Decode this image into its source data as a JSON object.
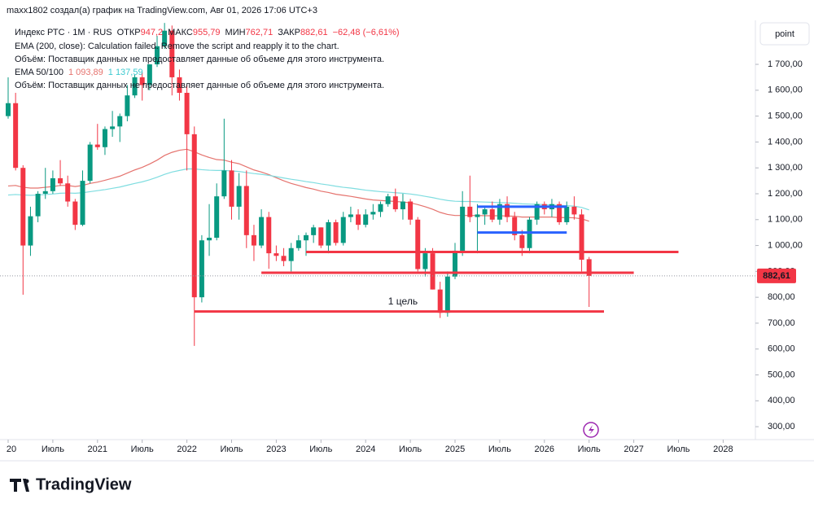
{
  "header": {
    "credit": "maxx1802 создал(а) график на TradingView.com, Авг 01, 2026 17:06 UTC+3",
    "button": "point",
    "logo": "TradingView"
  },
  "chart_data": {
    "type": "candlestick",
    "legend": {
      "symbol": "Индекс РТС · 1M · RUS",
      "open_label": "ОТКР",
      "open": "947,2",
      "high_label": "МАКС",
      "high": "955,79",
      "low_label": "МИН",
      "low": "762,71",
      "close_label": "ЗАКР",
      "close": "882,61",
      "change": "−62,48 (−6,61%)",
      "ema200": "EMA (200, close): Calculation failed. Remove the script and reapply it to the chart.",
      "volume1": "Объём: Поставщик данных не предоставляет данные об объеме для этого инструмента.",
      "ema_label": "EMA 50/100",
      "volume2": "Объём: Поставщик данных не предоставляет данные об объеме для этого инструмента."
    },
    "up_color": "#089981",
    "down_color": "#f23645",
    "x": [
      "2020-01",
      "2020-02",
      "2020-03",
      "2020-04",
      "2020-05",
      "2020-06",
      "2020-07",
      "2020-08",
      "2020-09",
      "2020-10",
      "2020-11",
      "2020-12",
      "2021-01",
      "2021-02",
      "2021-03",
      "2021-04",
      "2021-05",
      "2021-06",
      "2021-07",
      "2021-08",
      "2021-09",
      "2021-10",
      "2021-11",
      "2021-12",
      "2022-01",
      "2022-02",
      "2022-03",
      "2022-04",
      "2022-05",
      "2022-06",
      "2022-07",
      "2022-08",
      "2022-09",
      "2022-10",
      "2022-11",
      "2022-12",
      "2023-01",
      "2023-02",
      "2023-03",
      "2023-04",
      "2023-05",
      "2023-06",
      "2023-07",
      "2023-08",
      "2023-09",
      "2023-10",
      "2023-11",
      "2023-12",
      "2024-01",
      "2024-02",
      "2024-03",
      "2024-04",
      "2024-05",
      "2024-06",
      "2024-07",
      "2024-08",
      "2024-09",
      "2024-10",
      "2024-11",
      "2024-12",
      "2025-01",
      "2025-02",
      "2025-03",
      "2025-04",
      "2025-05",
      "2025-06",
      "2025-07",
      "2025-08",
      "2025-09",
      "2025-10",
      "2025-11",
      "2025-12",
      "2026-01",
      "2026-02",
      "2026-03",
      "2026-04",
      "2026-05",
      "2026-06",
      "2026-07"
    ],
    "open": [
      1500,
      1550,
      1300,
      1000,
      1113,
      1200,
      1210,
      1260,
      1240,
      1170,
      1080,
      1250,
      1390,
      1380,
      1450,
      1460,
      1500,
      1580,
      1650,
      1620,
      1700,
      1770,
      1830,
      1650,
      1590,
      1430,
      800,
      1020,
      1030,
      1190,
      1290,
      1150,
      1230,
      1040,
      1000,
      1110,
      970,
      960,
      940,
      990,
      1020,
      1040,
      1070,
      1000,
      1090,
      1010,
      1110,
      1120,
      1080,
      1120,
      1130,
      1160,
      1190,
      1140,
      1170,
      1100,
      909,
      970,
      830,
      740,
      880,
      980,
      1150,
      1110,
      1120,
      1140,
      1100,
      1160,
      1110,
      1040,
      990,
      1100,
      1160,
      1140,
      1160,
      1090,
      1150,
      1120,
      947.2
    ],
    "high": [
      1650,
      1590,
      1310,
      1150,
      1210,
      1300,
      1290,
      1330,
      1270,
      1180,
      1290,
      1400,
      1470,
      1460,
      1520,
      1510,
      1620,
      1660,
      1670,
      1700,
      1810,
      1860,
      1850,
      1680,
      1620,
      1460,
      1040,
      1160,
      1240,
      1490,
      1330,
      1280,
      1290,
      1080,
      1140,
      1130,
      1000,
      990,
      1010,
      1040,
      1050,
      1080,
      1070,
      1100,
      1100,
      1130,
      1150,
      1140,
      1140,
      1160,
      1170,
      1200,
      1220,
      1200,
      1180,
      1110,
      990,
      990,
      860,
      900,
      1010,
      1210,
      1270,
      1160,
      1150,
      1170,
      1180,
      1190,
      1130,
      1060,
      1110,
      1170,
      1170,
      1180,
      1170,
      1170,
      1190,
      1140,
      955.79
    ],
    "low": [
      1490,
      1290,
      810,
      960,
      1090,
      1180,
      1200,
      1230,
      1150,
      1060,
      1075,
      1240,
      1370,
      1350,
      1420,
      1400,
      1480,
      1570,
      1560,
      1600,
      1690,
      1760,
      1580,
      1560,
      1290,
      612,
      780,
      960,
      1020,
      1180,
      1100,
      1100,
      990,
      940,
      990,
      910,
      940,
      920,
      900,
      980,
      960,
      1010,
      990,
      970,
      1000,
      1000,
      1090,
      1060,
      1070,
      1100,
      1110,
      1150,
      1130,
      1100,
      1080,
      900,
      880,
      830,
      720,
      725,
      870,
      960,
      1090,
      970,
      1080,
      1090,
      1080,
      1090,
      1020,
      960,
      970,
      1080,
      1120,
      1110,
      1080,
      1080,
      1100,
      900,
      762.71
    ],
    "close": [
      1550,
      1300,
      1000,
      1113,
      1200,
      1210,
      1260,
      1240,
      1170,
      1080,
      1250,
      1390,
      1380,
      1450,
      1460,
      1500,
      1580,
      1650,
      1620,
      1700,
      1770,
      1830,
      1650,
      1590,
      1430,
      800,
      1020,
      1030,
      1190,
      1290,
      1150,
      1230,
      1040,
      1000,
      1110,
      970,
      960,
      940,
      990,
      1020,
      1040,
      1070,
      1000,
      1090,
      1010,
      1110,
      1120,
      1080,
      1120,
      1130,
      1160,
      1190,
      1140,
      1170,
      1100,
      909,
      970,
      830,
      740,
      880,
      980,
      1150,
      1110,
      1120,
      1140,
      1100,
      1160,
      1110,
      1040,
      990,
      1100,
      1160,
      1140,
      1160,
      1090,
      1150,
      1120,
      945.09,
      882.61
    ],
    "series": [
      {
        "color": "#e5736e",
        "value_label": "1 093,89",
        "values": [
          1230,
          1232,
          1225,
          1222,
          1222,
          1225,
          1228,
          1232,
          1232,
          1228,
          1232,
          1240,
          1245,
          1252,
          1260,
          1268,
          1280,
          1292,
          1302,
          1315,
          1330,
          1348,
          1360,
          1368,
          1372,
          1362,
          1350,
          1340,
          1332,
          1330,
          1322,
          1316,
          1304,
          1292,
          1284,
          1274,
          1262,
          1250,
          1240,
          1232,
          1224,
          1218,
          1210,
          1205,
          1198,
          1194,
          1190,
          1185,
          1180,
          1176,
          1174,
          1172,
          1170,
          1168,
          1165,
          1158,
          1150,
          1140,
          1128,
          1120,
          1116,
          1116,
          1116,
          1116,
          1115,
          1115,
          1115,
          1114,
          1113,
          1110,
          1110,
          1110,
          1110,
          1110,
          1108,
          1108,
          1107,
          1103,
          1093.89
        ]
      },
      {
        "color": "#7fdde0",
        "value_label": "1 137,59",
        "values": [
          1195,
          1197,
          1195,
          1194,
          1195,
          1197,
          1199,
          1202,
          1203,
          1202,
          1204,
          1208,
          1212,
          1216,
          1221,
          1226,
          1233,
          1240,
          1246,
          1254,
          1264,
          1275,
          1284,
          1290,
          1296,
          1296,
          1293,
          1291,
          1290,
          1290,
          1288,
          1286,
          1282,
          1278,
          1275,
          1271,
          1266,
          1261,
          1256,
          1252,
          1247,
          1243,
          1238,
          1234,
          1229,
          1225,
          1222,
          1218,
          1214,
          1211,
          1208,
          1206,
          1204,
          1202,
          1199,
          1195,
          1190,
          1185,
          1179,
          1174,
          1171,
          1170,
          1170,
          1169,
          1168,
          1167,
          1166,
          1165,
          1163,
          1161,
          1160,
          1159,
          1158,
          1157,
          1155,
          1154,
          1152,
          1147,
          1137.59
        ]
      }
    ],
    "levels": [
      {
        "value": 975,
        "from": "2023-05",
        "to": "2027-07",
        "color": "#f23645"
      },
      {
        "value": 895,
        "from": "2022-11",
        "to": "2027-01",
        "color": "#f23645"
      },
      {
        "value": 745,
        "from": "2022-02",
        "to": "2026-09",
        "color": "#f23645",
        "label": "1 цель",
        "label_at": "2024-06"
      },
      {
        "value": 1150,
        "from": "2025-04",
        "to": "2026-04",
        "color": "#2962ff"
      },
      {
        "value": 1050,
        "from": "2025-04",
        "to": "2026-04",
        "color": "#2962ff"
      }
    ],
    "last_price": {
      "value": 882.61,
      "label": "882,61",
      "color": "#f23645"
    },
    "xlim": [
      "2020-01",
      "2028-05"
    ],
    "xticks": [
      {
        "value": "2020-01",
        "label": "20"
      },
      {
        "value": "2020-07",
        "label": "Июль"
      },
      {
        "value": "2021-01",
        "label": "2021"
      },
      {
        "value": "2021-07",
        "label": "Июль"
      },
      {
        "value": "2022-01",
        "label": "2022"
      },
      {
        "value": "2022-07",
        "label": "Июль"
      },
      {
        "value": "2023-01",
        "label": "2023"
      },
      {
        "value": "2023-07",
        "label": "Июль"
      },
      {
        "value": "2024-01",
        "label": "2024"
      },
      {
        "value": "2024-07",
        "label": "Июль"
      },
      {
        "value": "2025-01",
        "label": "2025"
      },
      {
        "value": "2025-07",
        "label": "Июль"
      },
      {
        "value": "2026-01",
        "label": "2026"
      },
      {
        "value": "2026-07",
        "label": "Июль"
      },
      {
        "value": "2027-01",
        "label": "2027"
      },
      {
        "value": "2027-07",
        "label": "Июль"
      },
      {
        "value": "2028-01",
        "label": "2028"
      }
    ],
    "ylim": [
      250,
      1870
    ],
    "yticks": [
      {
        "value": 300,
        "label": "300,00"
      },
      {
        "value": 400,
        "label": "400,00"
      },
      {
        "value": 500,
        "label": "500,00"
      },
      {
        "value": 600,
        "label": "600,00"
      },
      {
        "value": 700,
        "label": "700,00"
      },
      {
        "value": 800,
        "label": "800,00"
      },
      {
        "value": 900,
        "label": "900,00"
      },
      {
        "value": 1000,
        "label": "1 000,00"
      },
      {
        "value": 1100,
        "label": "1 100,00"
      },
      {
        "value": 1200,
        "label": "1 200,00"
      },
      {
        "value": 1300,
        "label": "1 300,00"
      },
      {
        "value": 1400,
        "label": "1 400,00"
      },
      {
        "value": 1500,
        "label": "1 500,00"
      },
      {
        "value": 1600,
        "label": "1 600,00"
      },
      {
        "value": 1700,
        "label": "1 700,00"
      }
    ],
    "grid": false
  }
}
